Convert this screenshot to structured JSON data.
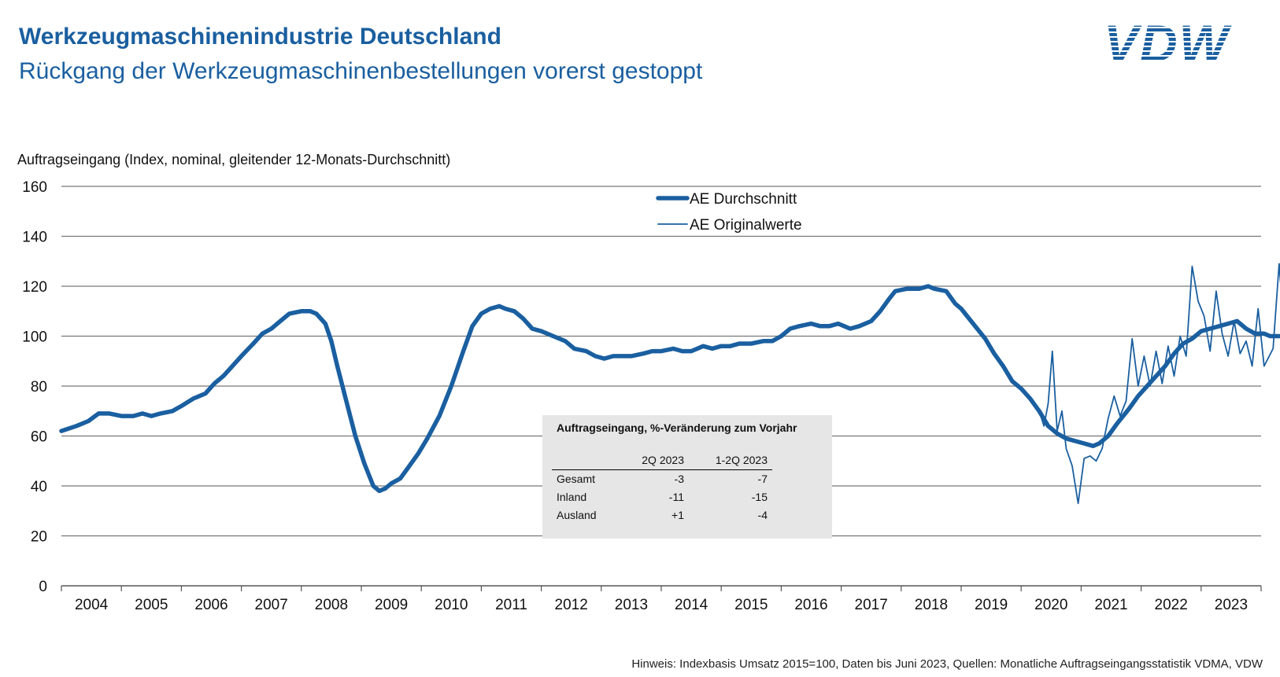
{
  "header": {
    "title": "Werkzeugmaschinenindustrie Deutschland",
    "subtitle": "Rückgang der Werkzeugmaschinenbestellungen vorerst gestoppt",
    "logo_text": "VDW"
  },
  "footnote": "Hinweis: Indexbasis Umsatz 2015=100, Daten bis Juni 2023, Quellen: Monatliche Auftragseingangsstatistik VDMA, VDW",
  "colors": {
    "primary": "#1a5fa0",
    "grid": "#777777",
    "box": "#e6e6e6"
  },
  "chart_data": {
    "type": "line",
    "ylabel": "Auftragseingang (Index, nominal, gleitender 12-Monats-Durchschnitt)",
    "ylim": [
      0,
      160
    ],
    "yticks": [
      0,
      20,
      40,
      60,
      80,
      100,
      120,
      140,
      160
    ],
    "xticks": [
      "2004",
      "2005",
      "2006",
      "2007",
      "2008",
      "2009",
      "2010",
      "2011",
      "2012",
      "2013",
      "2014",
      "2015",
      "2016",
      "2017",
      "2018",
      "2019",
      "2020",
      "2021",
      "2022",
      "2023"
    ],
    "xlim": [
      2004,
      2024
    ],
    "grid": "horizontal",
    "legend_position": "top-center",
    "series": [
      {
        "name": "AE Durchschnitt",
        "style": "thick",
        "points": [
          [
            2004.0,
            62
          ],
          [
            2004.25,
            64
          ],
          [
            2004.45,
            66
          ],
          [
            2004.62,
            69
          ],
          [
            2004.8,
            69
          ],
          [
            2005.0,
            68
          ],
          [
            2005.2,
            68
          ],
          [
            2005.35,
            69
          ],
          [
            2005.5,
            68
          ],
          [
            2005.65,
            69
          ],
          [
            2005.85,
            70
          ],
          [
            2006.0,
            72
          ],
          [
            2006.2,
            75
          ],
          [
            2006.4,
            77
          ],
          [
            2006.55,
            81
          ],
          [
            2006.7,
            84
          ],
          [
            2006.85,
            88
          ],
          [
            2007.0,
            92
          ],
          [
            2007.2,
            97
          ],
          [
            2007.35,
            101
          ],
          [
            2007.5,
            103
          ],
          [
            2007.65,
            106
          ],
          [
            2007.8,
            109
          ],
          [
            2008.0,
            110
          ],
          [
            2008.15,
            110
          ],
          [
            2008.25,
            109
          ],
          [
            2008.4,
            105
          ],
          [
            2008.5,
            98
          ],
          [
            2008.6,
            88
          ],
          [
            2008.75,
            74
          ],
          [
            2008.9,
            60
          ],
          [
            2009.05,
            49
          ],
          [
            2009.2,
            40
          ],
          [
            2009.3,
            38
          ],
          [
            2009.4,
            39
          ],
          [
            2009.5,
            41
          ],
          [
            2009.65,
            43
          ],
          [
            2009.8,
            48
          ],
          [
            2009.95,
            53
          ],
          [
            2010.1,
            59
          ],
          [
            2010.3,
            68
          ],
          [
            2010.5,
            80
          ],
          [
            2010.7,
            94
          ],
          [
            2010.85,
            104
          ],
          [
            2011.0,
            109
          ],
          [
            2011.15,
            111
          ],
          [
            2011.3,
            112
          ],
          [
            2011.4,
            111
          ],
          [
            2011.55,
            110
          ],
          [
            2011.7,
            107
          ],
          [
            2011.85,
            103
          ],
          [
            2012.0,
            102
          ],
          [
            2012.2,
            100
          ],
          [
            2012.4,
            98
          ],
          [
            2012.55,
            95
          ],
          [
            2012.75,
            94
          ],
          [
            2012.9,
            92
          ],
          [
            2013.05,
            91
          ],
          [
            2013.2,
            92
          ],
          [
            2013.35,
            92
          ],
          [
            2013.5,
            92
          ],
          [
            2013.7,
            93
          ],
          [
            2013.85,
            94
          ],
          [
            2014.0,
            94
          ],
          [
            2014.2,
            95
          ],
          [
            2014.35,
            94
          ],
          [
            2014.5,
            94
          ],
          [
            2014.7,
            96
          ],
          [
            2014.85,
            95
          ],
          [
            2015.0,
            96
          ],
          [
            2015.15,
            96
          ],
          [
            2015.3,
            97
          ],
          [
            2015.5,
            97
          ],
          [
            2015.7,
            98
          ],
          [
            2015.85,
            98
          ],
          [
            2016.0,
            100
          ],
          [
            2016.15,
            103
          ],
          [
            2016.3,
            104
          ],
          [
            2016.5,
            105
          ],
          [
            2016.65,
            104
          ],
          [
            2016.8,
            104
          ],
          [
            2016.95,
            105
          ],
          [
            2017.05,
            104
          ],
          [
            2017.15,
            103
          ],
          [
            2017.3,
            104
          ],
          [
            2017.5,
            106
          ],
          [
            2017.65,
            110
          ],
          [
            2017.8,
            115
          ],
          [
            2017.9,
            118
          ],
          [
            2018.1,
            119
          ],
          [
            2018.3,
            119
          ],
          [
            2018.45,
            120
          ],
          [
            2018.55,
            119
          ],
          [
            2018.75,
            118
          ],
          [
            2018.9,
            113
          ],
          [
            2019.0,
            111
          ],
          [
            2019.2,
            105
          ],
          [
            2019.4,
            99
          ],
          [
            2019.55,
            93
          ],
          [
            2019.7,
            88
          ],
          [
            2019.85,
            82
          ],
          [
            2020.0,
            79
          ],
          [
            2020.15,
            75
          ],
          [
            2020.3,
            70
          ],
          [
            2020.45,
            64
          ],
          [
            2020.6,
            61
          ],
          [
            2020.75,
            59
          ],
          [
            2020.9,
            58
          ],
          [
            2021.05,
            57
          ],
          [
            2021.2,
            56
          ],
          [
            2021.3,
            57
          ],
          [
            2021.45,
            60
          ],
          [
            2021.6,
            65
          ],
          [
            2021.8,
            71
          ],
          [
            2021.95,
            76
          ],
          [
            2022.1,
            80
          ],
          [
            2022.25,
            84
          ],
          [
            2022.4,
            88
          ],
          [
            2022.55,
            93
          ],
          [
            2022.7,
            97
          ],
          [
            2022.85,
            99
          ],
          [
            2023.0,
            102
          ],
          [
            2023.15,
            103
          ],
          [
            2023.3,
            104
          ],
          [
            2023.45,
            105
          ],
          [
            2023.6,
            106
          ],
          [
            2023.75,
            103
          ],
          [
            2023.9,
            101
          ],
          [
            2024.05,
            101
          ],
          [
            2024.15,
            100
          ],
          [
            2024.3,
            100
          ]
        ]
      },
      {
        "name": "AE Originalwerte",
        "style": "thin",
        "points": [
          [
            2020.0,
            79
          ],
          [
            2020.15,
            75
          ],
          [
            2020.3,
            70
          ],
          [
            2020.38,
            64
          ],
          [
            2020.45,
            73
          ],
          [
            2020.52,
            94
          ],
          [
            2020.6,
            62
          ],
          [
            2020.68,
            70
          ],
          [
            2020.75,
            55
          ],
          [
            2020.85,
            48
          ],
          [
            2020.95,
            33
          ],
          [
            2021.05,
            51
          ],
          [
            2021.15,
            52
          ],
          [
            2021.25,
            50
          ],
          [
            2021.35,
            55
          ],
          [
            2021.45,
            67
          ],
          [
            2021.55,
            76
          ],
          [
            2021.65,
            68
          ],
          [
            2021.75,
            74
          ],
          [
            2021.85,
            99
          ],
          [
            2021.95,
            80
          ],
          [
            2022.05,
            92
          ],
          [
            2022.15,
            80
          ],
          [
            2022.25,
            94
          ],
          [
            2022.35,
            81
          ],
          [
            2022.45,
            96
          ],
          [
            2022.55,
            84
          ],
          [
            2022.65,
            100
          ],
          [
            2022.75,
            92
          ],
          [
            2022.85,
            128
          ],
          [
            2022.95,
            114
          ],
          [
            2023.05,
            108
          ],
          [
            2023.15,
            94
          ],
          [
            2023.25,
            118
          ],
          [
            2023.35,
            101
          ],
          [
            2023.45,
            92
          ],
          [
            2023.55,
            106
          ],
          [
            2023.65,
            93
          ],
          [
            2023.75,
            98
          ],
          [
            2023.85,
            88
          ],
          [
            2023.95,
            111
          ],
          [
            2024.05,
            88
          ],
          [
            2024.2,
            95
          ],
          [
            2024.3,
            129
          ],
          [
            2024.42,
            91
          ],
          [
            2024.55,
            96
          ],
          [
            2024.7,
            125
          ]
        ]
      }
    ]
  },
  "info_box": {
    "title": "Auftragseingang, %-Veränderung zum Vorjahr",
    "columns": [
      "",
      "2Q 2023",
      "1-2Q 2023"
    ],
    "rows": [
      [
        "Gesamt",
        "-3",
        "-7"
      ],
      [
        "Inland",
        "-11",
        "-15"
      ],
      [
        "Ausland",
        "+1",
        "-4"
      ]
    ]
  }
}
